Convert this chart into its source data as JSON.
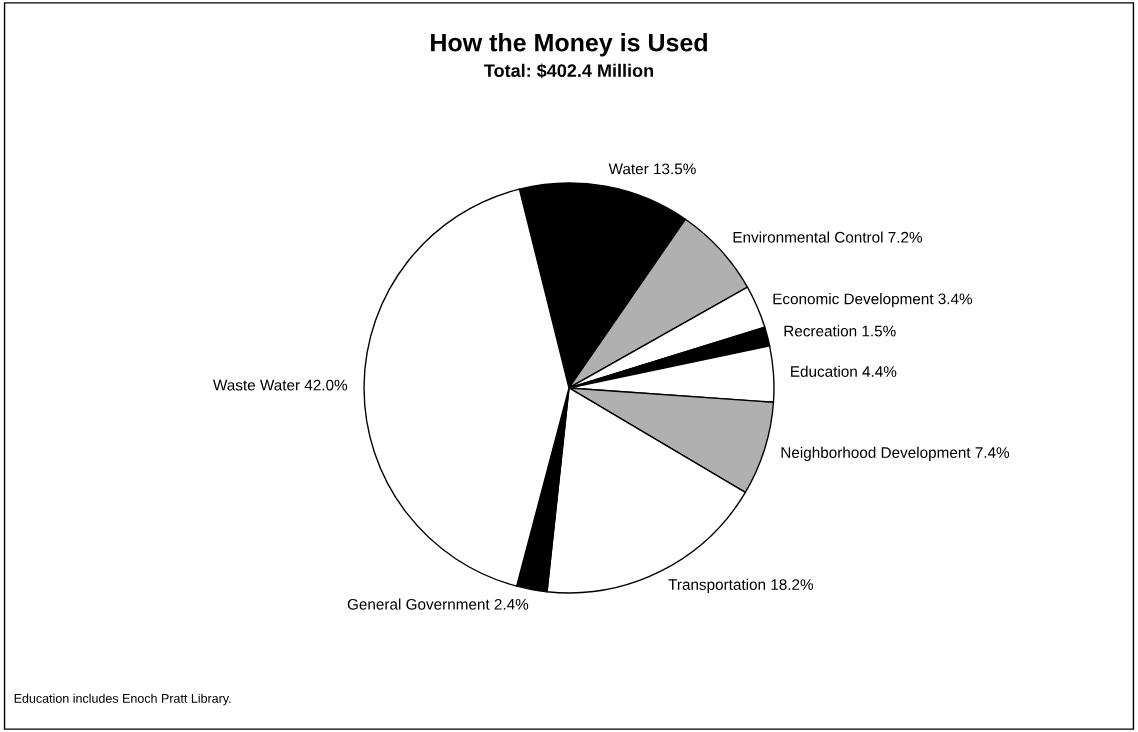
{
  "chart_data": {
    "type": "pie",
    "title": "How the Money is Used",
    "subtitle": "Total: $402.4 Million",
    "categories": [
      "Water 13.5%",
      "Environmental Control 7.2%",
      "Economic Development 3.4%",
      "Recreation 1.5%",
      "Education 4.4%",
      "Neighborhood Development 7.4%",
      "Transportation 18.2%",
      "General Government 2.4%",
      "Waste Water 42.0%"
    ],
    "values": [
      13.5,
      7.2,
      3.4,
      1.5,
      4.4,
      7.4,
      18.2,
      2.4,
      42.0
    ],
    "colors": [
      "#000000",
      "#b0b0b0",
      "#ffffff",
      "#000000",
      "#ffffff",
      "#b0b0b0",
      "#ffffff",
      "#000000",
      "#ffffff"
    ],
    "annotations": [
      "Education includes Enoch Pratt Library."
    ]
  }
}
